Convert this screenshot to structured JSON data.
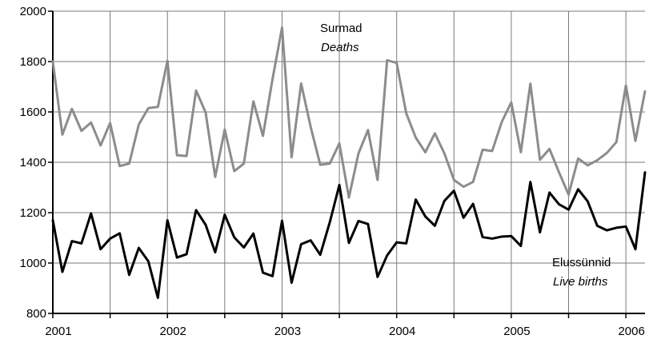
{
  "chart_data": {
    "type": "line",
    "x_start": "2001-01",
    "x_interval": "month",
    "xlim": [
      "2001-01",
      "2006-03"
    ],
    "ylim": [
      800,
      2000
    ],
    "yticks": [
      800,
      1000,
      1200,
      1400,
      1600,
      1800,
      2000
    ],
    "xtick_labels": [
      "2001",
      "2002",
      "2003",
      "2004",
      "2005",
      "2006"
    ],
    "grid": true,
    "series": [
      {
        "name": "Surmad",
        "name_en": "Deaths",
        "color": "#8c8c8c",
        "values": [
          1800,
          1510,
          1612,
          1525,
          1558,
          1467,
          1556,
          1385,
          1395,
          1550,
          1615,
          1620,
          1803,
          1428,
          1425,
          1685,
          1598,
          1342,
          1530,
          1365,
          1395,
          1642,
          1505,
          1730,
          1935,
          1420,
          1713,
          1540,
          1390,
          1395,
          1475,
          1260,
          1435,
          1528,
          1330,
          1805,
          1795,
          1595,
          1498,
          1440,
          1515,
          1435,
          1330,
          1303,
          1322,
          1450,
          1445,
          1560,
          1638,
          1440,
          1712,
          1410,
          1453,
          1360,
          1272,
          1415,
          1388,
          1408,
          1437,
          1480,
          1705,
          1485,
          1682
        ]
      },
      {
        "name": "Elussünnid",
        "name_en": "Live births",
        "color": "#000000",
        "values": [
          1170,
          965,
          1087,
          1078,
          1197,
          1055,
          1097,
          1118,
          953,
          1060,
          1007,
          862,
          1170,
          1022,
          1035,
          1210,
          1152,
          1043,
          1192,
          1102,
          1062,
          1117,
          962,
          948,
          1168,
          922,
          1075,
          1090,
          1033,
          1162,
          1310,
          1080,
          1167,
          1155,
          945,
          1030,
          1082,
          1078,
          1252,
          1185,
          1148,
          1247,
          1287,
          1180,
          1235,
          1103,
          1097,
          1105,
          1107,
          1068,
          1322,
          1122,
          1280,
          1233,
          1212,
          1293,
          1245,
          1148,
          1130,
          1140,
          1145,
          1055,
          1360
        ]
      }
    ]
  }
}
